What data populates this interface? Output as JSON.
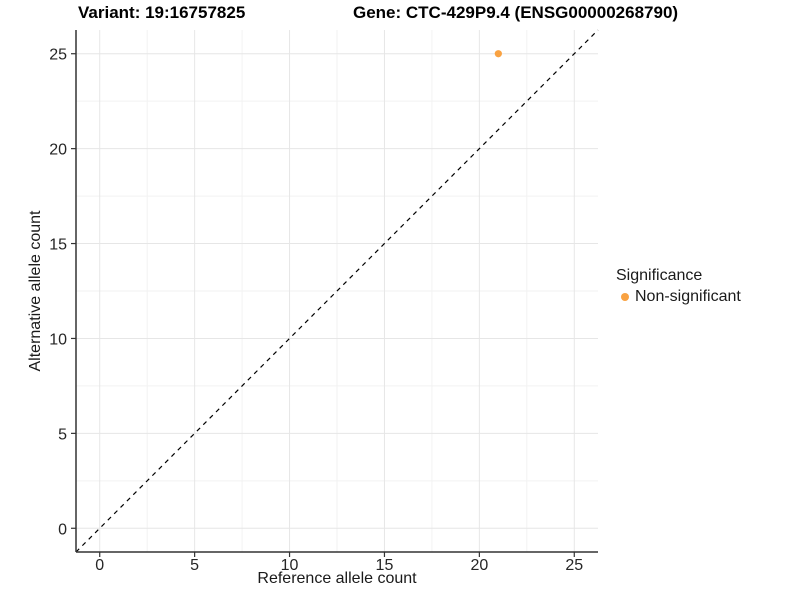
{
  "chart_data": {
    "type": "scatter",
    "title_left": "Variant: 19:16757825",
    "title_right": "Gene: CTC-429P9.4 (ENSG00000268790)",
    "xlabel": "Reference allele count",
    "ylabel": "Alternative allele count",
    "xlim": [
      -1.25,
      26.25
    ],
    "ylim": [
      -1.25,
      26.25
    ],
    "x_ticks": [
      0,
      5,
      10,
      15,
      20,
      25
    ],
    "y_ticks": [
      0,
      5,
      10,
      15,
      20,
      25
    ],
    "minor_ticks": [
      2.5,
      7.5,
      12.5,
      17.5,
      22.5
    ],
    "grid": true,
    "points": [
      {
        "x": 21,
        "y": 25,
        "group": "Non-significant"
      }
    ],
    "identity_line": {
      "slope": 1,
      "intercept": 0,
      "style": "dashed",
      "color": "#000000"
    },
    "legend": {
      "title": "Significance",
      "position": "right",
      "items": [
        {
          "label": "Non-significant",
          "color": "#F9A242"
        }
      ]
    },
    "colors": {
      "point": "#F9A242",
      "axis_line": "#333333",
      "tick_mark": "#333333",
      "tick_label": "#262626",
      "grid_major": "#E6E6E6",
      "grid_minor": "#F2F2F2",
      "background": "#FFFFFF"
    }
  }
}
